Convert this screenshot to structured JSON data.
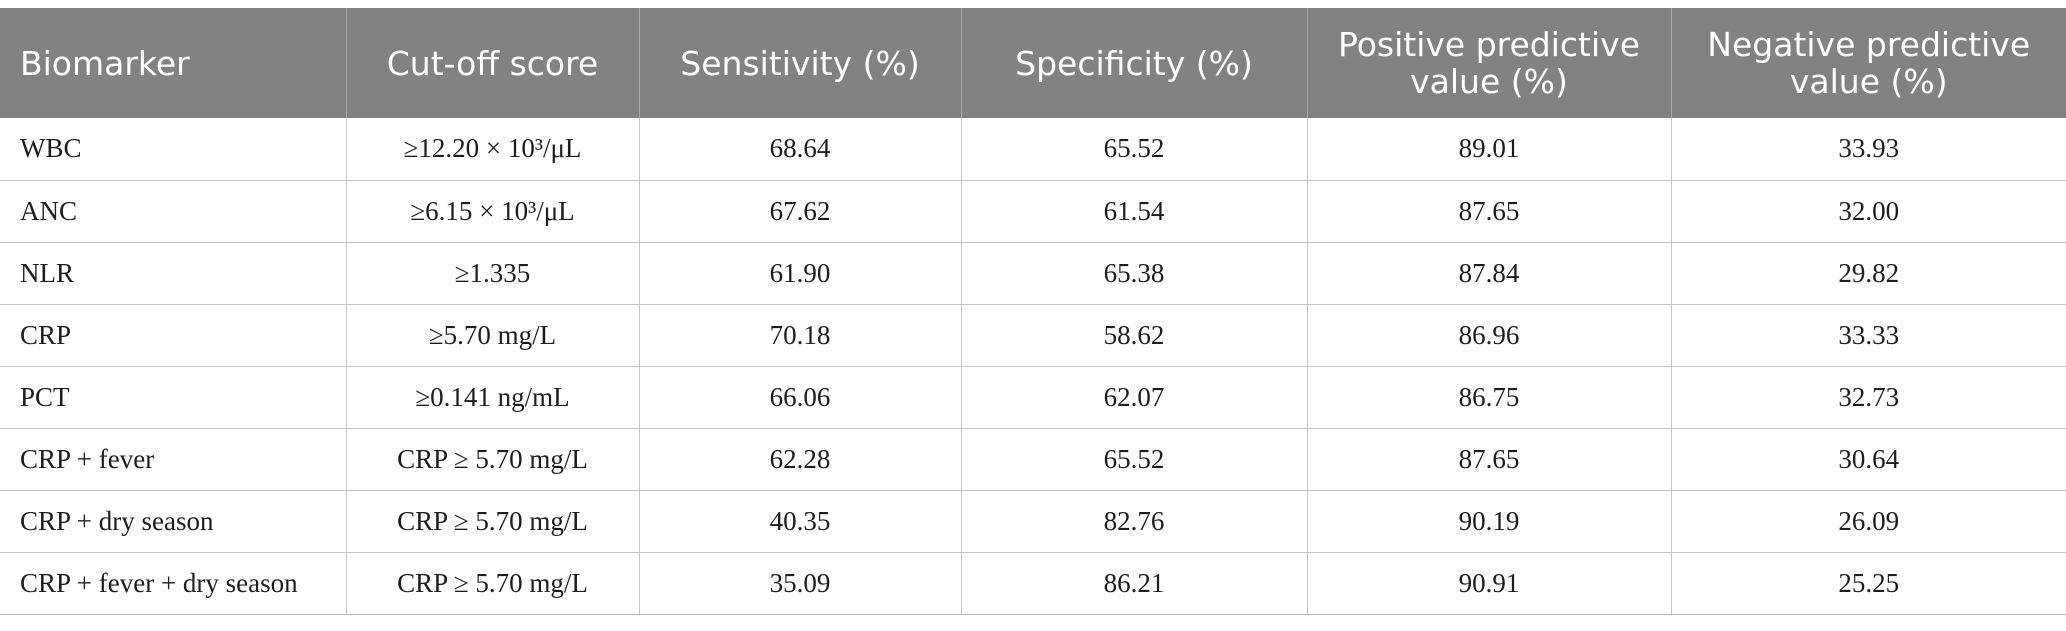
{
  "table": {
    "headers": [
      "Biomarker",
      "Cut-off score",
      "Sensitivity (%)",
      "Specificity (%)",
      "Positive predictive value (%)",
      "Negative predictive value (%)"
    ],
    "rows": [
      [
        "WBC",
        "≥12.20 × 10³/μL",
        "68.64",
        "65.52",
        "89.01",
        "33.93"
      ],
      [
        "ANC",
        "≥6.15 × 10³/μL",
        "67.62",
        "61.54",
        "87.65",
        "32.00"
      ],
      [
        "NLR",
        "≥1.335",
        "61.90",
        "65.38",
        "87.84",
        "29.82"
      ],
      [
        "CRP",
        "≥5.70 mg/L",
        "70.18",
        "58.62",
        "86.96",
        "33.33"
      ],
      [
        "PCT",
        "≥0.141 ng/mL",
        "66.06",
        "62.07",
        "86.75",
        "32.73"
      ],
      [
        "CRP + fever",
        "CRP ≥ 5.70 mg/L",
        "62.28",
        "65.52",
        "87.65",
        "30.64"
      ],
      [
        "CRP + dry season",
        "CRP ≥ 5.70 mg/L",
        "40.35",
        "82.76",
        "90.19",
        "26.09"
      ],
      [
        "CRP + fever + dry season",
        "CRP ≥ 5.70 mg/L",
        "35.09",
        "86.21",
        "90.91",
        "25.25"
      ]
    ]
  },
  "colors": {
    "header_background": "#818281",
    "header_text": "#ffffff",
    "body_text": "#1d1d1d",
    "rule": "#c4c4c4"
  }
}
